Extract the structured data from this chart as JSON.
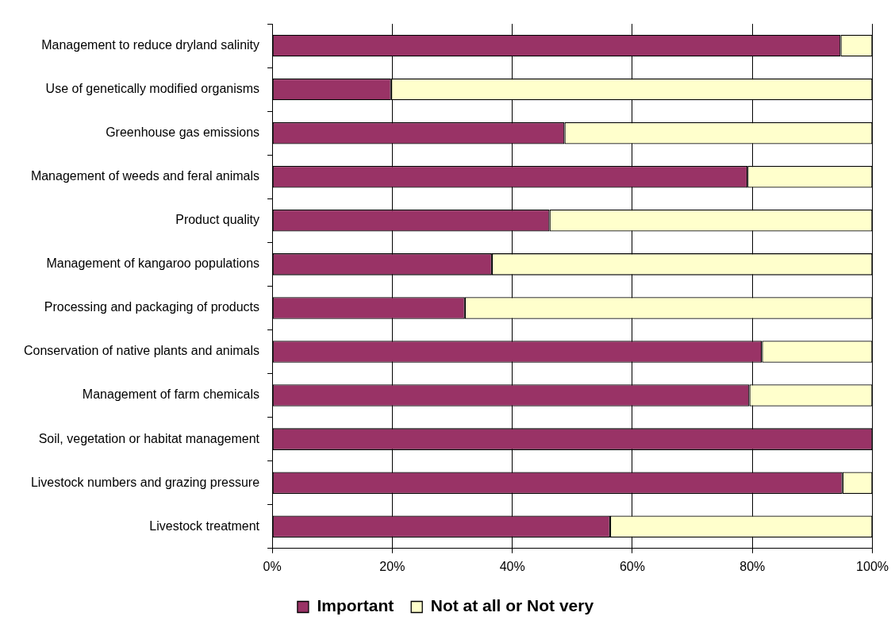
{
  "chart_data": {
    "type": "bar",
    "orientation": "horizontal",
    "stacked": true,
    "categories": [
      "Management to reduce dryland salinity",
      "Use of genetically modified organisms",
      "Greenhouse gas emissions",
      "Management of weeds and feral animals",
      "Product quality",
      "Management of kangaroo populations",
      "Processing and packaging of products",
      "Conservation of native plants and animals",
      "Management of farm chemicals",
      "Soil, vegetation or habitat management",
      "Livestock numbers and grazing pressure",
      "Livestock treatment"
    ],
    "series": [
      {
        "name": "Important",
        "color": "#993366",
        "values": [
          94.7,
          19.8,
          48.7,
          79.2,
          46.2,
          36.6,
          32.1,
          81.6,
          79.5,
          100,
          95.0,
          56.3
        ]
      },
      {
        "name": "Not at all or Not very",
        "color": "#ffffcc",
        "values": [
          5.3,
          80.2,
          51.3,
          20.8,
          53.8,
          63.4,
          67.9,
          18.4,
          20.5,
          0,
          5.0,
          43.7
        ]
      }
    ],
    "xlim": [
      0,
      100
    ],
    "xticks": [
      {
        "value": 0,
        "label": "0%"
      },
      {
        "value": 20,
        "label": "20%"
      },
      {
        "value": 40,
        "label": "40%"
      },
      {
        "value": 60,
        "label": "60%"
      },
      {
        "value": 80,
        "label": "80%"
      },
      {
        "value": 100,
        "label": "100%"
      }
    ],
    "grid": "x",
    "legend": "bottom"
  }
}
